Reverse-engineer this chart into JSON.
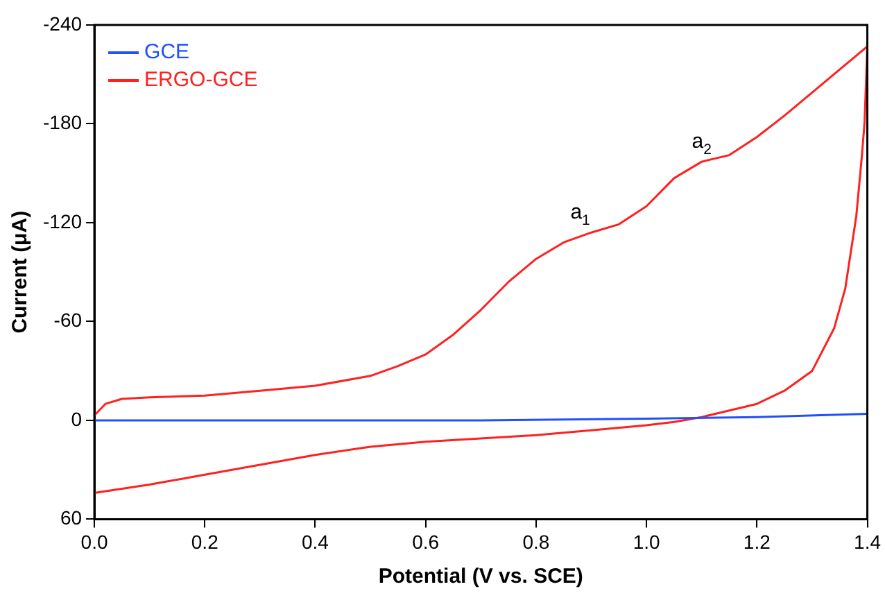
{
  "chart_data": {
    "type": "line",
    "xlabel": "Potential (V vs. SCE)",
    "ylabel": "Current (μA)",
    "xlim": [
      0,
      1.4
    ],
    "xticks": [
      {
        "value": 0,
        "label": "0.0"
      },
      0.2,
      0.4,
      0.6,
      0.8,
      {
        "value": 1,
        "label": "1.0"
      },
      1.2,
      1.4
    ],
    "ylim": [
      60,
      -240
    ],
    "yticks": [
      60,
      0,
      -60,
      -120,
      -180,
      -240
    ],
    "grid": false,
    "legend": "top left",
    "marker": "none",
    "line_style": "solid",
    "series": [
      {
        "name": "GCE",
        "color": "#1f4fff",
        "x": [
          0,
          0.7,
          1.0,
          1.2,
          1.4
        ],
        "values": [
          0,
          0,
          -1,
          -2,
          -4
        ]
      },
      {
        "name": "ERGO-GCE",
        "color": "#ff2020",
        "x": [
          0,
          0.02,
          0.05,
          0.1,
          0.2,
          0.3,
          0.4,
          0.5,
          0.55,
          0.6,
          0.65,
          0.7,
          0.75,
          0.8,
          0.85,
          0.9,
          0.95,
          1.0,
          1.05,
          1.1,
          1.15,
          1.2,
          1.25,
          1.3,
          1.35,
          1.4,
          1.395,
          1.39,
          1.38,
          1.36,
          1.34,
          1.3,
          1.25,
          1.2,
          1.15,
          1.1,
          1.05,
          1.0,
          0.9,
          0.8,
          0.7,
          0.6,
          0.5,
          0.4,
          0.3,
          0.2,
          0.1,
          0
        ],
        "values": [
          -3,
          -10,
          -13,
          -14,
          -15,
          -18,
          -21,
          -27,
          -33,
          -40,
          -52,
          -67,
          -84,
          -98,
          -108,
          -114,
          -119,
          -130,
          -147,
          -157,
          -161,
          -172,
          -185,
          -199,
          -213,
          -227,
          -181,
          -160,
          -124,
          -80,
          -56,
          -30,
          -18,
          -10,
          -6,
          -2,
          1,
          3,
          6,
          9,
          11,
          13,
          16,
          21,
          27,
          33,
          39,
          44
        ]
      }
    ],
    "annotations": [
      {
        "text": "a$_{1}$",
        "x": 0.88,
        "y": -114
      },
      {
        "text": "a$_{2}$",
        "x": 1.1,
        "y": -157
      }
    ]
  }
}
